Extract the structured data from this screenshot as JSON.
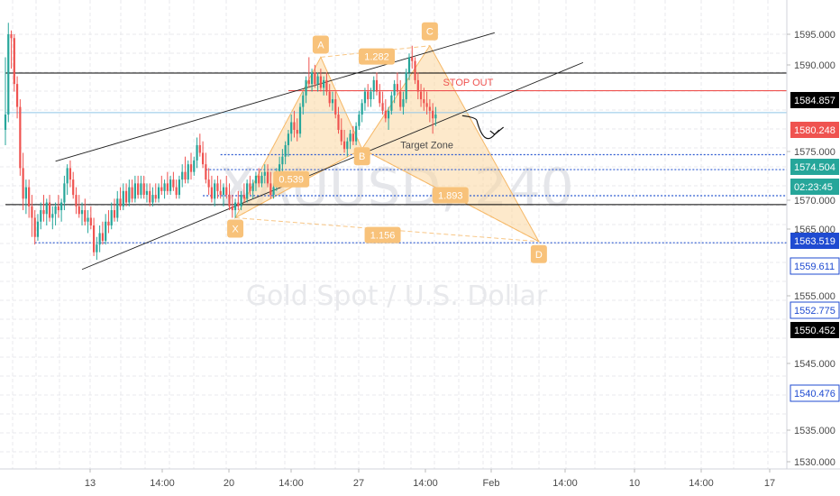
{
  "chart_data": {
    "type": "candlestick",
    "symbol_watermark": "XAUUSD, 240",
    "name_watermark": "Gold Spot / U.S. Dollar",
    "colors": {
      "up": "#26a69a",
      "down": "#ef5350",
      "pattern_fill": "#fbd7a0",
      "pattern_stroke": "#f6b867",
      "level_line": "#2d5bd1",
      "stop_line": "#ef5350",
      "black_line": "#000000",
      "current_line": "#8fc5e8",
      "price_tag_black": "#000000",
      "price_tag_red": "#ef5350",
      "price_tag_teal": "#26a69a",
      "price_tag_blue": "#1f4bd1"
    },
    "y_axis": {
      "range": [
        1528.5,
        1598
      ],
      "tick_labels": [
        "1595.000",
        "1590.000",
        "1575.000",
        "1570.000",
        "1565.000",
        "1555.000",
        "1545.000",
        "1535.000",
        "1530.000"
      ]
    },
    "x_axis": {
      "tick_labels": [
        "13",
        "14:00",
        "20",
        "14:00",
        "27",
        "14:00",
        "Feb",
        "14:00",
        "10",
        "14:00",
        "17"
      ]
    },
    "price_tags": [
      {
        "label": "1584.857",
        "price": 1584.857,
        "style": "black"
      },
      {
        "label": "1580.248",
        "price": 1580.248,
        "style": "red"
      },
      {
        "label": "1574.504",
        "price": 1574.504,
        "style": "teal"
      },
      {
        "label": "02:23:45",
        "price": 1571.2,
        "style": "teal"
      },
      {
        "label": "1563.519",
        "price": 1563.519,
        "style": "blue"
      },
      {
        "label": "1559.611",
        "price": 1559.611,
        "style": "outline"
      },
      {
        "label": "1552.775",
        "price": 1552.775,
        "style": "outline"
      },
      {
        "label": "1550.452",
        "price": 1550.452,
        "style": "black"
      },
      {
        "label": "1540.476",
        "price": 1540.476,
        "style": "outline"
      }
    ],
    "horizontal_levels": [
      {
        "price": 1584.857,
        "kind": "black",
        "from_index": 0
      },
      {
        "price": 1580.248,
        "kind": "stop",
        "from_index": 96
      },
      {
        "price": 1574.504,
        "kind": "current",
        "from_index": 0
      },
      {
        "price": 1563.519,
        "kind": "level",
        "from_index": 73
      },
      {
        "price": 1559.611,
        "kind": "level",
        "from_index": 68
      },
      {
        "price": 1552.775,
        "kind": "level",
        "from_index": 67
      },
      {
        "price": 1550.452,
        "kind": "black",
        "from_index": 0
      },
      {
        "price": 1540.476,
        "kind": "level",
        "from_index": 10
      }
    ],
    "pattern_points": [
      {
        "label": "X",
        "index": 78,
        "price": 1547
      },
      {
        "label": "A",
        "index": 107,
        "price": 1589
      },
      {
        "label": "B",
        "index": 121,
        "price": 1565
      },
      {
        "label": "C",
        "index": 144,
        "price": 1592
      },
      {
        "label": "D",
        "index": 181,
        "price": 1540.8
      }
    ],
    "ratios": [
      {
        "label": "1.282",
        "index": 126,
        "price": 1589.2
      },
      {
        "label": "0.539",
        "index": 97,
        "price": 1557.1
      },
      {
        "label": "1.893",
        "index": 151,
        "price": 1552.9
      },
      {
        "label": "1.156",
        "index": 128,
        "price": 1542.5
      }
    ],
    "annotations": [
      {
        "label": "STOP OUT",
        "index": 157,
        "price": 1581.5,
        "color": "#ef5350"
      },
      {
        "label": "Target Zone",
        "index": 143,
        "price": 1565.2,
        "color": "#4a4a4a"
      }
    ],
    "channel_upper": [
      {
        "index": 17,
        "price": 1561.8
      },
      {
        "index": 166,
        "price": 1595.4
      }
    ],
    "channel_lower": [
      {
        "index": 26,
        "price": 1533.5
      },
      {
        "index": 196,
        "price": 1587.6
      }
    ],
    "projection": [
      {
        "index": 155,
        "price": 1573.7
      },
      {
        "index": 160,
        "price": 1572.3
      },
      {
        "index": 166,
        "price": 1568.8
      },
      {
        "index": 169,
        "price": 1570.7
      }
    ],
    "candles": [
      [
        1570,
        1589,
        1566,
        1574
      ],
      [
        1574,
        1598,
        1572,
        1595
      ],
      [
        1595,
        1596,
        1586,
        1594
      ],
      [
        1594,
        1595,
        1580,
        1582
      ],
      [
        1582,
        1584,
        1573,
        1576
      ],
      [
        1576,
        1578,
        1558,
        1560
      ],
      [
        1560,
        1564,
        1549,
        1552
      ],
      [
        1552,
        1557,
        1548,
        1555
      ],
      [
        1555,
        1557,
        1547,
        1550
      ],
      [
        1550,
        1553,
        1542,
        1547
      ],
      [
        1547,
        1549,
        1540,
        1542
      ],
      [
        1542,
        1548,
        1541,
        1546
      ],
      [
        1546,
        1551,
        1544,
        1549
      ],
      [
        1549,
        1553,
        1546,
        1548
      ],
      [
        1548,
        1552,
        1545,
        1551
      ],
      [
        1551,
        1553,
        1546,
        1547
      ],
      [
        1547,
        1550,
        1544,
        1548
      ],
      [
        1548,
        1551,
        1545,
        1550
      ],
      [
        1550,
        1553,
        1547,
        1549
      ],
      [
        1549,
        1552,
        1546,
        1551
      ],
      [
        1551,
        1558,
        1549,
        1556
      ],
      [
        1556,
        1561,
        1553,
        1560
      ],
      [
        1560,
        1562,
        1555,
        1557
      ],
      [
        1557,
        1559,
        1552,
        1553
      ],
      [
        1553,
        1555,
        1548,
        1550
      ],
      [
        1550,
        1553,
        1547,
        1548
      ],
      [
        1548,
        1551,
        1545,
        1549
      ],
      [
        1549,
        1552,
        1545,
        1546
      ],
      [
        1546,
        1549,
        1543,
        1547
      ],
      [
        1547,
        1550,
        1544,
        1545
      ],
      [
        1545,
        1547,
        1537,
        1538
      ],
      [
        1538,
        1542,
        1536,
        1540
      ],
      [
        1540,
        1545,
        1538,
        1543
      ],
      [
        1543,
        1546,
        1540,
        1541
      ],
      [
        1541,
        1548,
        1540,
        1546
      ],
      [
        1546,
        1549,
        1543,
        1545
      ],
      [
        1545,
        1551,
        1544,
        1549
      ],
      [
        1549,
        1552,
        1546,
        1547
      ],
      [
        1547,
        1554,
        1546,
        1552
      ],
      [
        1552,
        1555,
        1549,
        1550
      ],
      [
        1550,
        1556,
        1549,
        1554
      ],
      [
        1554,
        1556,
        1550,
        1551
      ],
      [
        1551,
        1557,
        1550,
        1555
      ],
      [
        1555,
        1557,
        1551,
        1552
      ],
      [
        1552,
        1558,
        1551,
        1556
      ],
      [
        1556,
        1558,
        1552,
        1553
      ],
      [
        1553,
        1558,
        1552,
        1556
      ],
      [
        1556,
        1558,
        1552,
        1553
      ],
      [
        1553,
        1556,
        1551,
        1554
      ],
      [
        1554,
        1556,
        1550,
        1551
      ],
      [
        1551,
        1555,
        1550,
        1553
      ],
      [
        1553,
        1556,
        1551,
        1552
      ],
      [
        1552,
        1556,
        1551,
        1555
      ],
      [
        1555,
        1558,
        1553,
        1554
      ],
      [
        1554,
        1557,
        1552,
        1556
      ],
      [
        1556,
        1559,
        1553,
        1554
      ],
      [
        1554,
        1558,
        1553,
        1557
      ],
      [
        1557,
        1559,
        1554,
        1555
      ],
      [
        1555,
        1557,
        1552,
        1553
      ],
      [
        1553,
        1558,
        1552,
        1557
      ],
      [
        1557,
        1561,
        1555,
        1559
      ],
      [
        1559,
        1563,
        1556,
        1557
      ],
      [
        1557,
        1562,
        1556,
        1561
      ],
      [
        1561,
        1564,
        1557,
        1559
      ],
      [
        1559,
        1563,
        1558,
        1562
      ],
      [
        1562,
        1568,
        1560,
        1566
      ],
      [
        1566,
        1569,
        1563,
        1564
      ],
      [
        1564,
        1567,
        1560,
        1561
      ],
      [
        1561,
        1564,
        1556,
        1557
      ],
      [
        1557,
        1560,
        1553,
        1555
      ],
      [
        1555,
        1558,
        1551,
        1552
      ],
      [
        1552,
        1557,
        1550,
        1556
      ],
      [
        1556,
        1558,
        1552,
        1554
      ],
      [
        1554,
        1557,
        1552,
        1553
      ],
      [
        1553,
        1556,
        1550,
        1555
      ],
      [
        1555,
        1558,
        1552,
        1553
      ],
      [
        1553,
        1556,
        1549,
        1550
      ],
      [
        1550,
        1553,
        1547,
        1549
      ],
      [
        1549,
        1552,
        1547,
        1551
      ],
      [
        1551,
        1554,
        1549,
        1550
      ],
      [
        1550,
        1554,
        1549,
        1553
      ],
      [
        1553,
        1556,
        1551,
        1552
      ],
      [
        1552,
        1557,
        1551,
        1556
      ],
      [
        1556,
        1558,
        1553,
        1554
      ],
      [
        1554,
        1557,
        1552,
        1556
      ],
      [
        1556,
        1559,
        1554,
        1558
      ],
      [
        1558,
        1560,
        1555,
        1556
      ],
      [
        1556,
        1559,
        1555,
        1558
      ],
      [
        1558,
        1561,
        1556,
        1559
      ],
      [
        1559,
        1561,
        1555,
        1556
      ],
      [
        1556,
        1559,
        1552,
        1553
      ],
      [
        1553,
        1556,
        1552,
        1555
      ],
      [
        1555,
        1560,
        1554,
        1559
      ],
      [
        1559,
        1563,
        1557,
        1561
      ],
      [
        1561,
        1565,
        1559,
        1563
      ],
      [
        1563,
        1567,
        1561,
        1566
      ],
      [
        1566,
        1570,
        1563,
        1569
      ],
      [
        1569,
        1574,
        1567,
        1572
      ],
      [
        1572,
        1575,
        1568,
        1570
      ],
      [
        1570,
        1573,
        1567,
        1569
      ],
      [
        1569,
        1577,
        1568,
        1576
      ],
      [
        1576,
        1580,
        1574,
        1579
      ],
      [
        1579,
        1584,
        1577,
        1583
      ],
      [
        1583,
        1589,
        1581,
        1582
      ],
      [
        1582,
        1586,
        1580,
        1585
      ],
      [
        1585,
        1587,
        1581,
        1582
      ],
      [
        1582,
        1585,
        1580,
        1584
      ],
      [
        1584,
        1586,
        1580,
        1581
      ],
      [
        1581,
        1584,
        1579,
        1583
      ],
      [
        1583,
        1585,
        1579,
        1580
      ],
      [
        1580,
        1582,
        1576,
        1577
      ],
      [
        1577,
        1580,
        1575,
        1578
      ],
      [
        1578,
        1580,
        1573,
        1574
      ],
      [
        1574,
        1576,
        1569,
        1570
      ],
      [
        1570,
        1573,
        1566,
        1567
      ],
      [
        1567,
        1570,
        1564,
        1565
      ],
      [
        1565,
        1568,
        1563,
        1567
      ],
      [
        1567,
        1570,
        1565,
        1569
      ],
      [
        1569,
        1571,
        1566,
        1567
      ],
      [
        1567,
        1572,
        1566,
        1571
      ],
      [
        1571,
        1575,
        1570,
        1574
      ],
      [
        1574,
        1578,
        1572,
        1577
      ],
      [
        1577,
        1581,
        1575,
        1580
      ],
      [
        1580,
        1582,
        1576,
        1578
      ],
      [
        1578,
        1581,
        1576,
        1580
      ],
      [
        1580,
        1584,
        1578,
        1583
      ],
      [
        1583,
        1585,
        1579,
        1580
      ],
      [
        1580,
        1582,
        1576,
        1577
      ],
      [
        1577,
        1580,
        1574,
        1575
      ],
      [
        1575,
        1578,
        1572,
        1573
      ],
      [
        1573,
        1576,
        1570,
        1575
      ],
      [
        1575,
        1580,
        1574,
        1579
      ],
      [
        1579,
        1583,
        1577,
        1582
      ],
      [
        1582,
        1585,
        1579,
        1580
      ],
      [
        1580,
        1583,
        1575,
        1576
      ],
      [
        1576,
        1580,
        1574,
        1578
      ],
      [
        1578,
        1586,
        1577,
        1585
      ],
      [
        1585,
        1590,
        1583,
        1589
      ],
      [
        1589,
        1592,
        1586,
        1588
      ],
      [
        1588,
        1589,
        1582,
        1583
      ],
      [
        1583,
        1585,
        1578,
        1580
      ],
      [
        1580,
        1582,
        1576,
        1578
      ],
      [
        1578,
        1581,
        1575,
        1577
      ],
      [
        1577,
        1580,
        1574,
        1576
      ],
      [
        1576,
        1578,
        1572,
        1575
      ],
      [
        1575,
        1577,
        1569,
        1573
      ],
      [
        1573,
        1576,
        1571,
        1574
      ]
    ]
  }
}
